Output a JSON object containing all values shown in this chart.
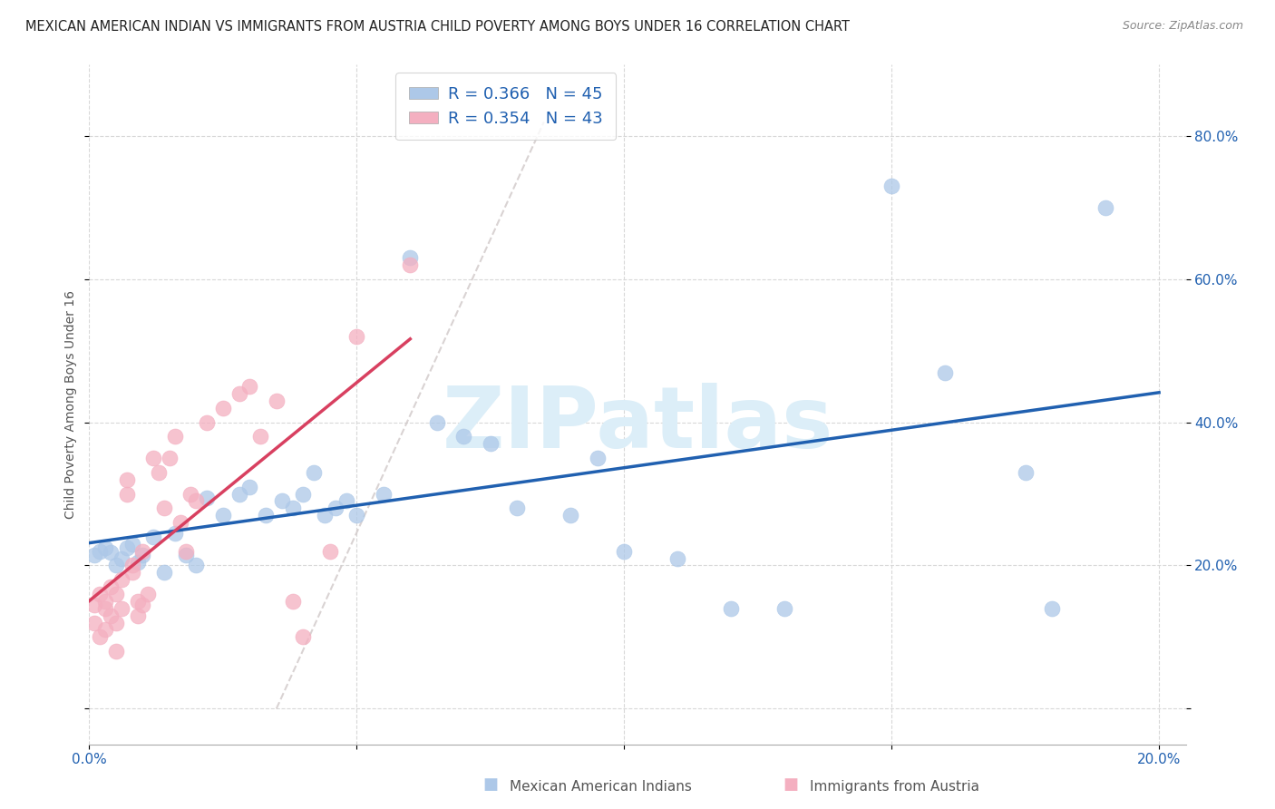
{
  "title": "MEXICAN AMERICAN INDIAN VS IMMIGRANTS FROM AUSTRIA CHILD POVERTY AMONG BOYS UNDER 16 CORRELATION CHART",
  "source": "Source: ZipAtlas.com",
  "ylabel": "Child Poverty Among Boys Under 16",
  "xlim": [
    0.0,
    0.205
  ],
  "ylim": [
    -0.05,
    0.9
  ],
  "xticks": [
    0.0,
    0.05,
    0.1,
    0.15,
    0.2
  ],
  "yticks": [
    0.0,
    0.2,
    0.4,
    0.6,
    0.8
  ],
  "R1": 0.366,
  "N1": 45,
  "R2": 0.354,
  "N2": 43,
  "color_blue": "#adc8e8",
  "color_pink": "#f4afc0",
  "color_blue_line": "#2060b0",
  "color_pink_line": "#d84060",
  "color_dashed": "#d0c8c8",
  "watermark": "ZIPatlas",
  "watermark_color": "#dceef8",
  "legend1_label": "Mexican American Indians",
  "legend2_label": "Immigrants from Austria",
  "bg_color": "#ffffff",
  "grid_color": "#d8d8d8",
  "blue_x": [
    0.001,
    0.002,
    0.003,
    0.004,
    0.005,
    0.006,
    0.007,
    0.008,
    0.009,
    0.01,
    0.012,
    0.014,
    0.016,
    0.018,
    0.02,
    0.022,
    0.025,
    0.028,
    0.03,
    0.033,
    0.036,
    0.038,
    0.04,
    0.042,
    0.044,
    0.046,
    0.048,
    0.05,
    0.055,
    0.06,
    0.065,
    0.07,
    0.075,
    0.08,
    0.09,
    0.095,
    0.1,
    0.11,
    0.12,
    0.13,
    0.15,
    0.16,
    0.175,
    0.18,
    0.19
  ],
  "blue_y": [
    0.215,
    0.22,
    0.225,
    0.218,
    0.2,
    0.21,
    0.225,
    0.23,
    0.205,
    0.215,
    0.24,
    0.19,
    0.245,
    0.215,
    0.2,
    0.295,
    0.27,
    0.3,
    0.31,
    0.27,
    0.29,
    0.28,
    0.3,
    0.33,
    0.27,
    0.28,
    0.29,
    0.27,
    0.3,
    0.63,
    0.4,
    0.38,
    0.37,
    0.28,
    0.27,
    0.35,
    0.22,
    0.21,
    0.14,
    0.14,
    0.73,
    0.47,
    0.33,
    0.14,
    0.7
  ],
  "pink_x": [
    0.001,
    0.001,
    0.002,
    0.002,
    0.003,
    0.003,
    0.003,
    0.004,
    0.004,
    0.005,
    0.005,
    0.005,
    0.006,
    0.006,
    0.007,
    0.007,
    0.008,
    0.008,
    0.009,
    0.009,
    0.01,
    0.01,
    0.011,
    0.012,
    0.013,
    0.014,
    0.015,
    0.016,
    0.017,
    0.018,
    0.019,
    0.02,
    0.022,
    0.025,
    0.028,
    0.03,
    0.032,
    0.035,
    0.038,
    0.04,
    0.045,
    0.05,
    0.06
  ],
  "pink_y": [
    0.12,
    0.145,
    0.1,
    0.16,
    0.14,
    0.11,
    0.15,
    0.13,
    0.17,
    0.12,
    0.16,
    0.08,
    0.14,
    0.18,
    0.3,
    0.32,
    0.19,
    0.2,
    0.15,
    0.13,
    0.22,
    0.145,
    0.16,
    0.35,
    0.33,
    0.28,
    0.35,
    0.38,
    0.26,
    0.22,
    0.3,
    0.29,
    0.4,
    0.42,
    0.44,
    0.45,
    0.38,
    0.43,
    0.15,
    0.1,
    0.22,
    0.52,
    0.62
  ]
}
